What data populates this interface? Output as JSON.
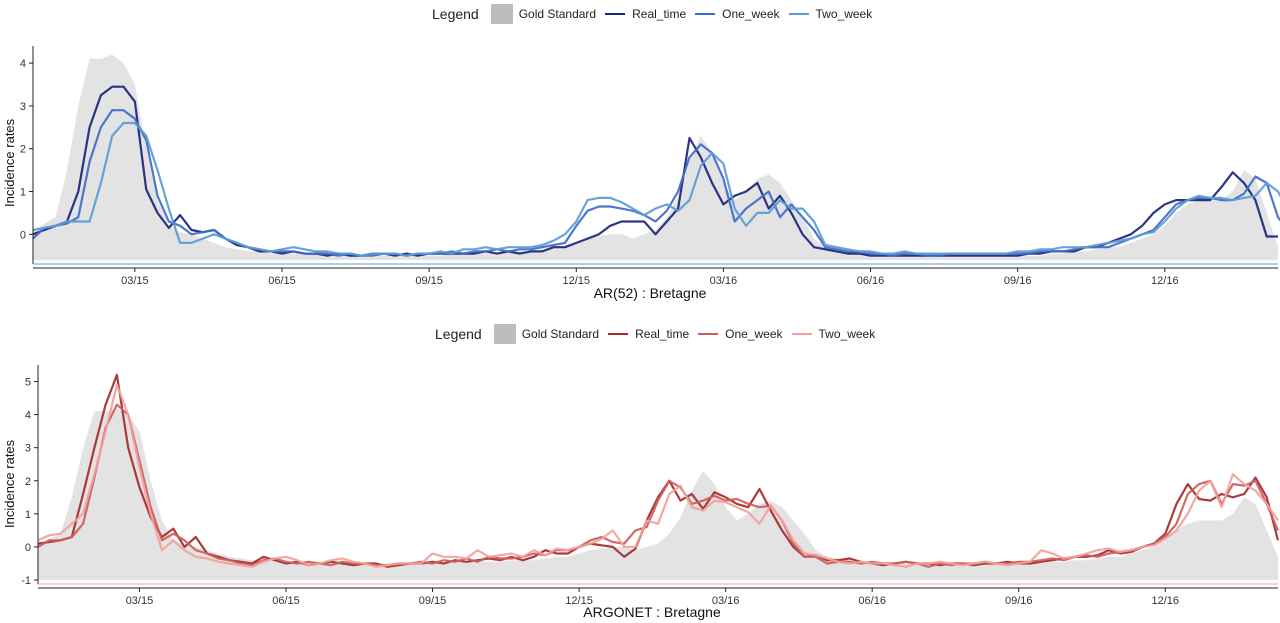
{
  "chart_data": [
    {
      "type": "line",
      "title": "",
      "xlabel": "AR(52) : Bretagne",
      "ylabel": "Incidence rates",
      "legend_title": "Legend",
      "legend_position": "top",
      "x_tick_labels": [
        "03/15",
        "06/15",
        "09/15",
        "12/15",
        "03/16",
        "06/16",
        "09/16",
        "12/16"
      ],
      "x_tick_weeks": [
        9,
        22,
        35,
        48,
        61,
        74,
        87,
        100
      ],
      "weeks_count": 111,
      "ylim": [
        -0.6,
        4.4
      ],
      "y_ticks": [
        0,
        1,
        2,
        3,
        4
      ],
      "series": [
        {
          "name": "Gold Standard",
          "kind": "area",
          "color": "#bdbdbd",
          "values": [
            0.1,
            0.25,
            0.4,
            1.5,
            3.0,
            4.1,
            4.1,
            4.2,
            4.0,
            3.5,
            2.0,
            0.8,
            0.2,
            0.05,
            0.0,
            -0.1,
            -0.2,
            -0.3,
            -0.35,
            -0.4,
            -0.4,
            -0.45,
            -0.45,
            -0.45,
            -0.45,
            -0.45,
            -0.5,
            -0.5,
            -0.5,
            -0.5,
            -0.5,
            -0.5,
            -0.5,
            -0.5,
            -0.5,
            -0.5,
            -0.5,
            -0.45,
            -0.45,
            -0.45,
            -0.45,
            -0.45,
            -0.4,
            -0.4,
            -0.4,
            -0.35,
            -0.3,
            -0.3,
            -0.2,
            -0.1,
            -0.05,
            0.0,
            0.0,
            -0.1,
            0.0,
            0.1,
            0.4,
            0.9,
            1.7,
            2.3,
            1.9,
            1.2,
            0.8,
            1.0,
            1.3,
            1.4,
            1.2,
            0.8,
            0.4,
            -0.1,
            -0.3,
            -0.35,
            -0.4,
            -0.45,
            -0.45,
            -0.5,
            -0.5,
            -0.5,
            -0.5,
            -0.5,
            -0.5,
            -0.5,
            -0.5,
            -0.5,
            -0.5,
            -0.5,
            -0.5,
            -0.5,
            -0.5,
            -0.5,
            -0.45,
            -0.45,
            -0.4,
            -0.4,
            -0.35,
            -0.3,
            -0.3,
            -0.2,
            -0.1,
            0.0,
            0.2,
            0.5,
            0.7,
            0.8,
            0.8,
            0.8,
            1.0,
            1.5,
            1.3,
            0.5,
            -0.3
          ]
        },
        {
          "name": "Real_time",
          "kind": "line",
          "color": "#1a237e",
          "values": [
            0.0,
            0.1,
            0.2,
            0.3,
            1.0,
            2.5,
            3.25,
            3.45,
            3.45,
            3.1,
            1.05,
            0.5,
            0.15,
            0.45,
            0.1,
            0.05,
            0.1,
            -0.1,
            -0.25,
            -0.3,
            -0.4,
            -0.4,
            -0.45,
            -0.4,
            -0.45,
            -0.45,
            -0.5,
            -0.45,
            -0.5,
            -0.5,
            -0.45,
            -0.45,
            -0.5,
            -0.45,
            -0.5,
            -0.45,
            -0.45,
            -0.45,
            -0.45,
            -0.45,
            -0.4,
            -0.45,
            -0.4,
            -0.45,
            -0.4,
            -0.4,
            -0.3,
            -0.3,
            -0.2,
            -0.1,
            0.0,
            0.2,
            0.3,
            0.3,
            0.3,
            0.0,
            0.3,
            0.6,
            2.25,
            1.8,
            1.2,
            0.7,
            0.9,
            1.0,
            1.2,
            0.6,
            0.9,
            0.5,
            0.0,
            -0.3,
            -0.35,
            -0.4,
            -0.45,
            -0.45,
            -0.5,
            -0.5,
            -0.5,
            -0.5,
            -0.5,
            -0.5,
            -0.5,
            -0.5,
            -0.5,
            -0.5,
            -0.5,
            -0.5,
            -0.5,
            -0.5,
            -0.45,
            -0.45,
            -0.4,
            -0.4,
            -0.4,
            -0.3,
            -0.3,
            -0.2,
            -0.1,
            0.0,
            0.2,
            0.5,
            0.7,
            0.8,
            0.8,
            0.8,
            0.8,
            1.1,
            1.45,
            1.2,
            0.8,
            -0.05,
            -0.05
          ]
        },
        {
          "name": "One_week",
          "kind": "line",
          "color": "#3f6bc4",
          "values": [
            -0.1,
            0.15,
            0.2,
            0.25,
            0.4,
            1.7,
            2.5,
            2.9,
            2.9,
            2.7,
            2.2,
            0.9,
            0.3,
            0.2,
            0.0,
            0.05,
            0.1,
            -0.1,
            -0.2,
            -0.3,
            -0.35,
            -0.4,
            -0.4,
            -0.4,
            -0.45,
            -0.45,
            -0.45,
            -0.5,
            -0.45,
            -0.5,
            -0.5,
            -0.45,
            -0.45,
            -0.5,
            -0.45,
            -0.45,
            -0.45,
            -0.4,
            -0.45,
            -0.4,
            -0.4,
            -0.35,
            -0.4,
            -0.35,
            -0.35,
            -0.3,
            -0.25,
            -0.2,
            0.2,
            0.55,
            0.65,
            0.65,
            0.6,
            0.55,
            0.45,
            0.3,
            0.55,
            1.0,
            1.8,
            2.1,
            1.9,
            1.3,
            0.3,
            0.6,
            0.8,
            1.0,
            0.4,
            0.7,
            0.4,
            0.1,
            -0.3,
            -0.35,
            -0.4,
            -0.4,
            -0.45,
            -0.45,
            -0.5,
            -0.45,
            -0.45,
            -0.5,
            -0.5,
            -0.45,
            -0.45,
            -0.45,
            -0.45,
            -0.45,
            -0.45,
            -0.45,
            -0.45,
            -0.4,
            -0.4,
            -0.4,
            -0.35,
            -0.3,
            -0.3,
            -0.3,
            -0.2,
            -0.1,
            0.0,
            0.1,
            0.4,
            0.7,
            0.8,
            0.85,
            0.85,
            0.8,
            0.8,
            0.95,
            1.35,
            1.2,
            0.4,
            0.05
          ]
        },
        {
          "name": "Two_week",
          "kind": "line",
          "color": "#5b9bd5",
          "values": [
            0.1,
            0.15,
            0.2,
            0.3,
            0.3,
            0.3,
            1.2,
            2.3,
            2.6,
            2.6,
            2.3,
            1.5,
            0.6,
            -0.2,
            -0.2,
            -0.1,
            0.0,
            -0.1,
            -0.2,
            -0.3,
            -0.35,
            -0.4,
            -0.35,
            -0.3,
            -0.35,
            -0.4,
            -0.4,
            -0.45,
            -0.45,
            -0.5,
            -0.45,
            -0.45,
            -0.45,
            -0.5,
            -0.45,
            -0.45,
            -0.4,
            -0.45,
            -0.35,
            -0.35,
            -0.3,
            -0.35,
            -0.3,
            -0.3,
            -0.3,
            -0.25,
            -0.15,
            0.0,
            0.3,
            0.8,
            0.85,
            0.85,
            0.75,
            0.6,
            0.45,
            0.6,
            0.7,
            0.55,
            0.8,
            1.6,
            1.9,
            1.65,
            0.6,
            0.2,
            0.5,
            0.5,
            0.8,
            0.6,
            0.6,
            0.3,
            -0.25,
            -0.3,
            -0.35,
            -0.4,
            -0.4,
            -0.45,
            -0.45,
            -0.4,
            -0.45,
            -0.45,
            -0.45,
            -0.45,
            -0.45,
            -0.45,
            -0.45,
            -0.45,
            -0.45,
            -0.4,
            -0.4,
            -0.35,
            -0.35,
            -0.3,
            -0.3,
            -0.3,
            -0.25,
            -0.2,
            -0.15,
            -0.1,
            0.0,
            0.05,
            0.3,
            0.6,
            0.8,
            0.9,
            0.85,
            0.85,
            0.8,
            0.85,
            0.9,
            1.2,
            1.0,
            0.5
          ]
        }
      ]
    },
    {
      "type": "line",
      "title": "",
      "xlabel": "ARGONET : Bretagne",
      "ylabel": "Incidence rates",
      "legend_title": "Legend",
      "legend_position": "top",
      "x_tick_labels": [
        "03/15",
        "06/15",
        "09/15",
        "12/15",
        "03/16",
        "06/16",
        "09/16",
        "12/16"
      ],
      "x_tick_weeks": [
        9,
        22,
        35,
        48,
        61,
        74,
        87,
        100
      ],
      "weeks_count": 111,
      "ylim": [
        -1.0,
        5.5
      ],
      "y_ticks": [
        -1,
        0,
        1,
        2,
        3,
        4,
        5
      ],
      "series": [
        {
          "name": "Gold Standard",
          "kind": "area",
          "color": "#bdbdbd",
          "values": [
            0.1,
            0.25,
            0.4,
            1.5,
            3.0,
            4.1,
            4.1,
            4.2,
            4.0,
            3.5,
            2.0,
            0.8,
            0.2,
            0.05,
            0.0,
            -0.1,
            -0.2,
            -0.3,
            -0.35,
            -0.4,
            -0.4,
            -0.45,
            -0.45,
            -0.45,
            -0.45,
            -0.45,
            -0.5,
            -0.5,
            -0.5,
            -0.5,
            -0.5,
            -0.5,
            -0.5,
            -0.5,
            -0.5,
            -0.5,
            -0.5,
            -0.45,
            -0.45,
            -0.45,
            -0.45,
            -0.45,
            -0.4,
            -0.4,
            -0.4,
            -0.35,
            -0.3,
            -0.3,
            -0.2,
            -0.1,
            -0.05,
            0.0,
            0.0,
            -0.1,
            0.0,
            0.1,
            0.4,
            0.9,
            1.7,
            2.3,
            1.9,
            1.2,
            0.8,
            1.0,
            1.3,
            1.4,
            1.2,
            0.8,
            0.4,
            -0.1,
            -0.3,
            -0.35,
            -0.4,
            -0.45,
            -0.45,
            -0.5,
            -0.5,
            -0.5,
            -0.5,
            -0.5,
            -0.5,
            -0.5,
            -0.5,
            -0.5,
            -0.5,
            -0.5,
            -0.5,
            -0.5,
            -0.5,
            -0.5,
            -0.45,
            -0.45,
            -0.4,
            -0.4,
            -0.35,
            -0.3,
            -0.3,
            -0.2,
            -0.1,
            0.0,
            0.2,
            0.5,
            0.7,
            0.8,
            0.8,
            0.8,
            1.0,
            1.5,
            1.3,
            0.5,
            -0.3
          ]
        },
        {
          "name": "Real_time",
          "kind": "line",
          "color": "#a52a2a",
          "values": [
            0.1,
            0.15,
            0.2,
            0.3,
            1.6,
            3.0,
            4.3,
            5.2,
            3.0,
            1.8,
            0.9,
            0.3,
            0.55,
            0.0,
            0.3,
            -0.2,
            -0.3,
            -0.4,
            -0.45,
            -0.5,
            -0.3,
            -0.4,
            -0.5,
            -0.45,
            -0.55,
            -0.5,
            -0.45,
            -0.5,
            -0.55,
            -0.5,
            -0.5,
            -0.6,
            -0.55,
            -0.5,
            -0.5,
            -0.45,
            -0.5,
            -0.4,
            -0.45,
            -0.4,
            -0.35,
            -0.4,
            -0.3,
            -0.4,
            -0.3,
            -0.1,
            -0.2,
            -0.2,
            0.0,
            0.1,
            0.05,
            0.0,
            -0.3,
            -0.05,
            0.8,
            1.5,
            2.0,
            1.4,
            1.6,
            1.15,
            1.65,
            1.5,
            1.3,
            1.2,
            1.75,
            1.1,
            0.5,
            0.0,
            -0.3,
            -0.25,
            -0.4,
            -0.4,
            -0.35,
            -0.45,
            -0.5,
            -0.55,
            -0.5,
            -0.45,
            -0.5,
            -0.5,
            -0.55,
            -0.5,
            -0.5,
            -0.55,
            -0.5,
            -0.5,
            -0.45,
            -0.5,
            -0.5,
            -0.45,
            -0.4,
            -0.35,
            -0.3,
            -0.3,
            -0.25,
            -0.1,
            -0.2,
            -0.15,
            0.0,
            0.1,
            0.4,
            1.3,
            1.9,
            1.45,
            1.4,
            1.6,
            1.5,
            1.6,
            2.1,
            1.5,
            0.2
          ]
        },
        {
          "name": "One_week",
          "kind": "line",
          "color": "#cd5c5c",
          "values": [
            0.0,
            0.2,
            0.2,
            0.3,
            0.7,
            2.1,
            3.6,
            4.3,
            4.0,
            2.6,
            1.2,
            0.2,
            0.4,
            0.2,
            -0.1,
            -0.2,
            -0.35,
            -0.4,
            -0.5,
            -0.55,
            -0.4,
            -0.35,
            -0.45,
            -0.5,
            -0.45,
            -0.5,
            -0.55,
            -0.45,
            -0.5,
            -0.5,
            -0.55,
            -0.55,
            -0.5,
            -0.5,
            -0.45,
            -0.5,
            -0.4,
            -0.45,
            -0.35,
            -0.45,
            -0.3,
            -0.35,
            -0.35,
            -0.3,
            -0.2,
            -0.25,
            -0.1,
            -0.1,
            0.0,
            0.2,
            0.3,
            0.15,
            0.1,
            0.5,
            0.6,
            1.4,
            2.0,
            1.8,
            1.3,
            1.4,
            1.55,
            1.4,
            1.45,
            1.3,
            1.2,
            1.25,
            0.8,
            0.1,
            -0.3,
            -0.3,
            -0.5,
            -0.45,
            -0.45,
            -0.5,
            -0.45,
            -0.5,
            -0.5,
            -0.45,
            -0.5,
            -0.6,
            -0.5,
            -0.55,
            -0.5,
            -0.5,
            -0.45,
            -0.5,
            -0.5,
            -0.45,
            -0.45,
            -0.4,
            -0.35,
            -0.4,
            -0.3,
            -0.25,
            -0.3,
            -0.2,
            -0.15,
            -0.1,
            0.0,
            0.1,
            0.3,
            0.7,
            1.6,
            1.9,
            2.0,
            1.3,
            1.9,
            1.85,
            2.0,
            1.3,
            0.5
          ]
        },
        {
          "name": "Two_week",
          "kind": "line",
          "color": "#f4a09a",
          "values": [
            0.2,
            0.35,
            0.4,
            0.7,
            1.0,
            2.2,
            3.5,
            4.9,
            4.0,
            2.4,
            1.0,
            -0.1,
            0.2,
            -0.1,
            -0.3,
            -0.35,
            -0.45,
            -0.5,
            -0.55,
            -0.6,
            -0.45,
            -0.35,
            -0.3,
            -0.4,
            -0.55,
            -0.5,
            -0.4,
            -0.35,
            -0.45,
            -0.5,
            -0.6,
            -0.55,
            -0.5,
            -0.5,
            -0.5,
            -0.2,
            -0.3,
            -0.3,
            -0.35,
            -0.1,
            -0.3,
            -0.25,
            -0.2,
            -0.3,
            -0.1,
            -0.25,
            -0.05,
            -0.1,
            0.0,
            0.1,
            0.25,
            0.5,
            0.0,
            0.0,
            0.8,
            0.7,
            1.6,
            1.85,
            1.2,
            1.1,
            1.4,
            1.35,
            1.2,
            1.05,
            0.7,
            1.25,
            0.8,
            0.2,
            -0.2,
            -0.25,
            -0.35,
            -0.45,
            -0.5,
            -0.45,
            -0.5,
            -0.5,
            -0.55,
            -0.6,
            -0.5,
            -0.5,
            -0.45,
            -0.5,
            -0.55,
            -0.5,
            -0.45,
            -0.5,
            -0.55,
            -0.5,
            -0.45,
            -0.1,
            -0.2,
            -0.35,
            -0.3,
            -0.2,
            -0.1,
            -0.05,
            -0.15,
            -0.1,
            0.0,
            0.05,
            0.25,
            0.5,
            1.0,
            1.7,
            2.0,
            1.2,
            2.2,
            1.9,
            1.7,
            1.3,
            0.8
          ]
        }
      ]
    }
  ]
}
